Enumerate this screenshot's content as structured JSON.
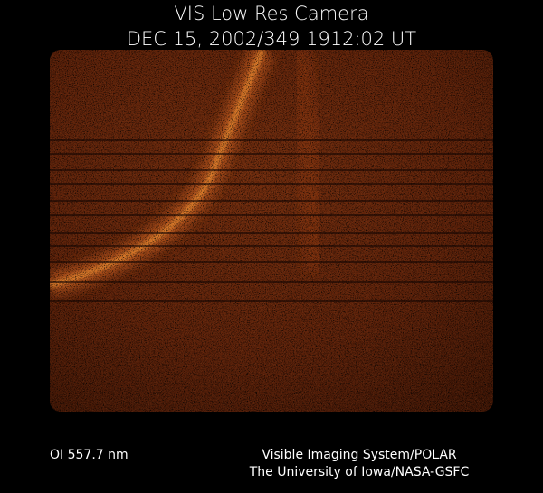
{
  "header": {
    "title": "VIS Low Res Camera",
    "timestamp": "DEC 15, 2002/349 1912:02 UT"
  },
  "footer": {
    "wavelength": "OI  557.7 nm",
    "credit_line1": "Visible Imaging System/POLAR",
    "credit_line2": "The University of Iowa/NASA-GSFC"
  }
}
